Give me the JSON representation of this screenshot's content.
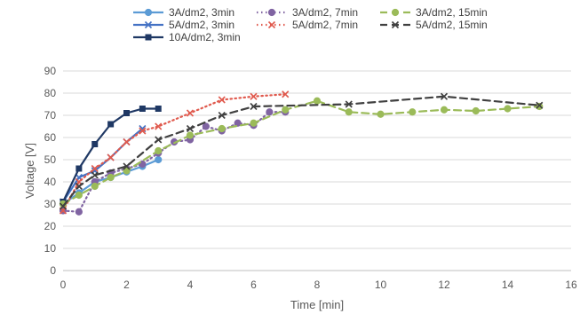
{
  "chart_data": {
    "type": "line",
    "title": "",
    "xlabel": "Time [min]",
    "ylabel": "Voltage [V]",
    "xlim": [
      0,
      16
    ],
    "ylim": [
      0,
      90
    ],
    "xticks": [
      0,
      2,
      4,
      6,
      8,
      10,
      12,
      14,
      16
    ],
    "yticks": [
      0,
      10,
      20,
      30,
      40,
      50,
      60,
      70,
      80,
      90
    ],
    "grid": "horizontal",
    "legend_position": "top",
    "series": [
      {
        "name": "3A/dm2, 3min",
        "color": "#5B9BD5",
        "dash": "solid",
        "marker": "circle",
        "x": [
          0,
          0.5,
          1,
          1.5,
          2,
          2.5,
          3
        ],
        "y": [
          30,
          35,
          40,
          42,
          44.5,
          47,
          50
        ]
      },
      {
        "name": "5A/dm2, 3min",
        "color": "#4472C4",
        "dash": "solid",
        "marker": "x",
        "x": [
          0,
          0.5,
          1,
          1.5,
          2,
          2.5
        ],
        "y": [
          31,
          42,
          45,
          51,
          58,
          64
        ]
      },
      {
        "name": "10A/dm2, 3min",
        "color": "#1F3864",
        "dash": "solid",
        "marker": "square",
        "x": [
          0,
          0.5,
          1,
          1.5,
          2,
          2.5,
          3
        ],
        "y": [
          31,
          46,
          57,
          66,
          71,
          73,
          73
        ]
      },
      {
        "name": "3A/dm2, 7min",
        "color": "#8064A2",
        "dash": "dot",
        "marker": "circle",
        "x": [
          0,
          0.5,
          1,
          1.5,
          2,
          2.5,
          3,
          3.5,
          4,
          4.5,
          5,
          5.5,
          6,
          6.5,
          7
        ],
        "y": [
          27,
          26.5,
          40,
          44,
          46,
          48,
          53,
          58,
          59,
          65,
          63,
          66.5,
          65.5,
          71.5,
          71.5
        ]
      },
      {
        "name": "5A/dm2, 7min",
        "color": "#E05A4E",
        "dash": "dot",
        "marker": "x",
        "x": [
          0,
          0.5,
          1,
          1.5,
          2,
          2.5,
          3,
          4,
          5,
          6,
          7
        ],
        "y": [
          27,
          40,
          46,
          51,
          58,
          63,
          65,
          71,
          77,
          78.5,
          79.5
        ]
      },
      {
        "name": "3A/dm2, 15min",
        "color": "#9BBB59",
        "dash": "dash",
        "marker": "circle",
        "x": [
          0,
          0.5,
          1,
          1.5,
          2,
          3,
          4,
          5,
          6,
          7,
          8,
          9,
          10,
          11,
          12,
          13,
          14,
          15
        ],
        "y": [
          30,
          34,
          38,
          42,
          45,
          54,
          61,
          64,
          66.5,
          72.5,
          76.5,
          71.5,
          70.5,
          71.5,
          72.5,
          72,
          73,
          74
        ]
      },
      {
        "name": "5A/dm2, 15min",
        "color": "#404040",
        "dash": "dash",
        "marker": "x",
        "x": [
          0,
          0.5,
          1,
          2,
          3,
          4,
          5,
          6,
          9,
          12,
          15
        ],
        "y": [
          29,
          38,
          43,
          47,
          59,
          64,
          70,
          74,
          75,
          78.5,
          74.5
        ]
      }
    ]
  }
}
